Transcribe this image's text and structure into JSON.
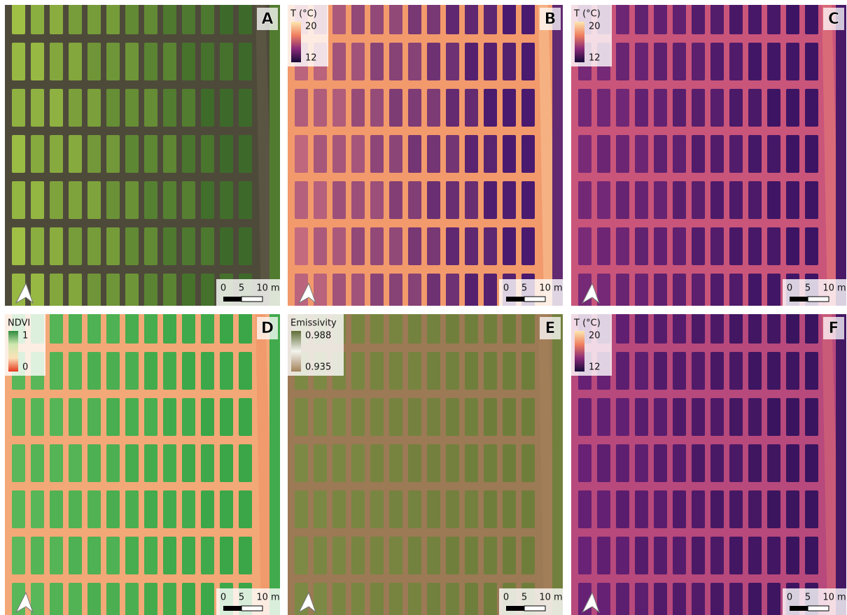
{
  "panels": [
    {
      "label": "A",
      "scale_bar": [
        "0",
        "5",
        "10 m"
      ]
    },
    {
      "label": "B",
      "legend": {
        "title": "T (°C)",
        "max": "20",
        "min": "12"
      },
      "scale_bar": [
        "0",
        "5",
        "10 m"
      ]
    },
    {
      "label": "C",
      "legend": {
        "title": "T (°C)",
        "max": "20",
        "min": "12"
      },
      "scale_bar": [
        "0",
        "5",
        "10 m"
      ]
    },
    {
      "label": "D",
      "legend": {
        "title": "NDVI",
        "max": "1",
        "min": "0"
      },
      "scale_bar": [
        "0",
        "5",
        "10 m"
      ]
    },
    {
      "label": "E",
      "legend": {
        "title": "Emissivity",
        "max": "0.988",
        "min": "0.935"
      },
      "scale_bar": [
        "0",
        "5",
        "10 m"
      ]
    },
    {
      "label": "F",
      "legend": {
        "title": "T (°C)",
        "max": "20",
        "min": "12"
      },
      "scale_bar": [
        "0",
        "5",
        "10 m"
      ]
    }
  ]
}
